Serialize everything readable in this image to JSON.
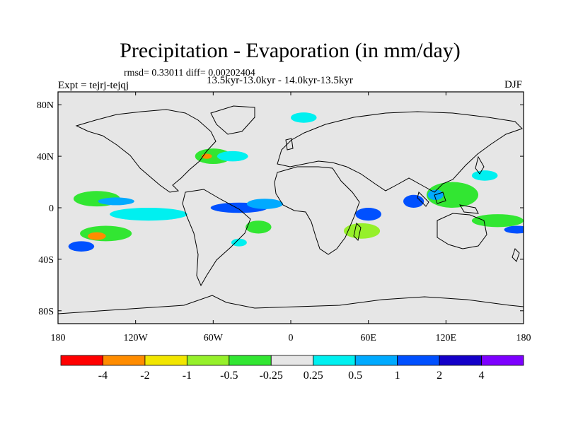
{
  "chart_data": {
    "type": "heatmap",
    "title": "Precipitation - Evaporation (in mm/day)",
    "stats_line": "rmsd= 0.33011 diff= 0.00202404",
    "experiment_label": "Expt = tejrj-tejqj",
    "period_label": "13.5kyr-13.0kyr - 14.0kyr-13.5kyr",
    "season_label": "DJF",
    "xlim": [
      -180,
      180
    ],
    "ylim": [
      -90,
      90
    ],
    "x_ticks": [
      {
        "value": -180,
        "label": "180"
      },
      {
        "value": -120,
        "label": "120W"
      },
      {
        "value": -60,
        "label": "60W"
      },
      {
        "value": 0,
        "label": "0"
      },
      {
        "value": 60,
        "label": "60E"
      },
      {
        "value": 120,
        "label": "120E"
      },
      {
        "value": 180,
        "label": "180"
      }
    ],
    "y_ticks": [
      {
        "value": 80,
        "label": "80N"
      },
      {
        "value": 40,
        "label": "40N"
      },
      {
        "value": 0,
        "label": "0"
      },
      {
        "value": -40,
        "label": "40S"
      },
      {
        "value": -80,
        "label": "80S"
      }
    ],
    "colorbar": {
      "colors": [
        "#ff0000",
        "#ff8c00",
        "#f2e600",
        "#96f02a",
        "#32e632",
        "#e6e6e6",
        "#00f0f0",
        "#00aaff",
        "#0050ff",
        "#1400c8",
        "#7d00ff"
      ],
      "boundary_labels": [
        "-4",
        "-2",
        "-1",
        "-0.5",
        "-0.25",
        "0.25",
        "0.5",
        "1",
        "2",
        "4"
      ]
    },
    "anomaly_regions": [
      {
        "lon": -150,
        "lat": 7,
        "rx": 18,
        "ry": 6,
        "color": "#32e632"
      },
      {
        "lon": -135,
        "lat": 5,
        "rx": 14,
        "ry": 3,
        "color": "#00aaff"
      },
      {
        "lon": -143,
        "lat": -20,
        "rx": 20,
        "ry": 6,
        "color": "#32e632"
      },
      {
        "lon": -150,
        "lat": -22,
        "rx": 7,
        "ry": 3,
        "color": "#ff8c00"
      },
      {
        "lon": -162,
        "lat": -30,
        "rx": 10,
        "ry": 4,
        "color": "#0050ff"
      },
      {
        "lon": -110,
        "lat": -5,
        "rx": 30,
        "ry": 5,
        "color": "#00f0f0"
      },
      {
        "lon": -60,
        "lat": 40,
        "rx": 14,
        "ry": 6,
        "color": "#32e632"
      },
      {
        "lon": -65,
        "lat": 40,
        "rx": 4,
        "ry": 2,
        "color": "#ff8c00"
      },
      {
        "lon": -40,
        "lat": 0,
        "rx": 22,
        "ry": 4,
        "color": "#0050ff"
      },
      {
        "lon": -20,
        "lat": 3,
        "rx": 14,
        "ry": 4,
        "color": "#00aaff"
      },
      {
        "lon": -45,
        "lat": 40,
        "rx": 12,
        "ry": 4,
        "color": "#00f0f0"
      },
      {
        "lon": -25,
        "lat": -15,
        "rx": 10,
        "ry": 5,
        "color": "#32e632"
      },
      {
        "lon": -40,
        "lat": -27,
        "rx": 6,
        "ry": 3,
        "color": "#00f0f0"
      },
      {
        "lon": 10,
        "lat": 70,
        "rx": 10,
        "ry": 4,
        "color": "#00f0f0"
      },
      {
        "lon": 60,
        "lat": -5,
        "rx": 10,
        "ry": 5,
        "color": "#0050ff"
      },
      {
        "lon": 55,
        "lat": -18,
        "rx": 14,
        "ry": 6,
        "color": "#96f02a"
      },
      {
        "lon": 95,
        "lat": 5,
        "rx": 8,
        "ry": 5,
        "color": "#0050ff"
      },
      {
        "lon": 125,
        "lat": 10,
        "rx": 20,
        "ry": 10,
        "color": "#32e632"
      },
      {
        "lon": 112,
        "lat": 10,
        "rx": 6,
        "ry": 4,
        "color": "#00aaff"
      },
      {
        "lon": 160,
        "lat": -10,
        "rx": 20,
        "ry": 5,
        "color": "#32e632"
      },
      {
        "lon": 175,
        "lat": -17,
        "rx": 10,
        "ry": 3,
        "color": "#0050ff"
      },
      {
        "lon": 150,
        "lat": 25,
        "rx": 10,
        "ry": 4,
        "color": "#00f0f0"
      }
    ]
  }
}
